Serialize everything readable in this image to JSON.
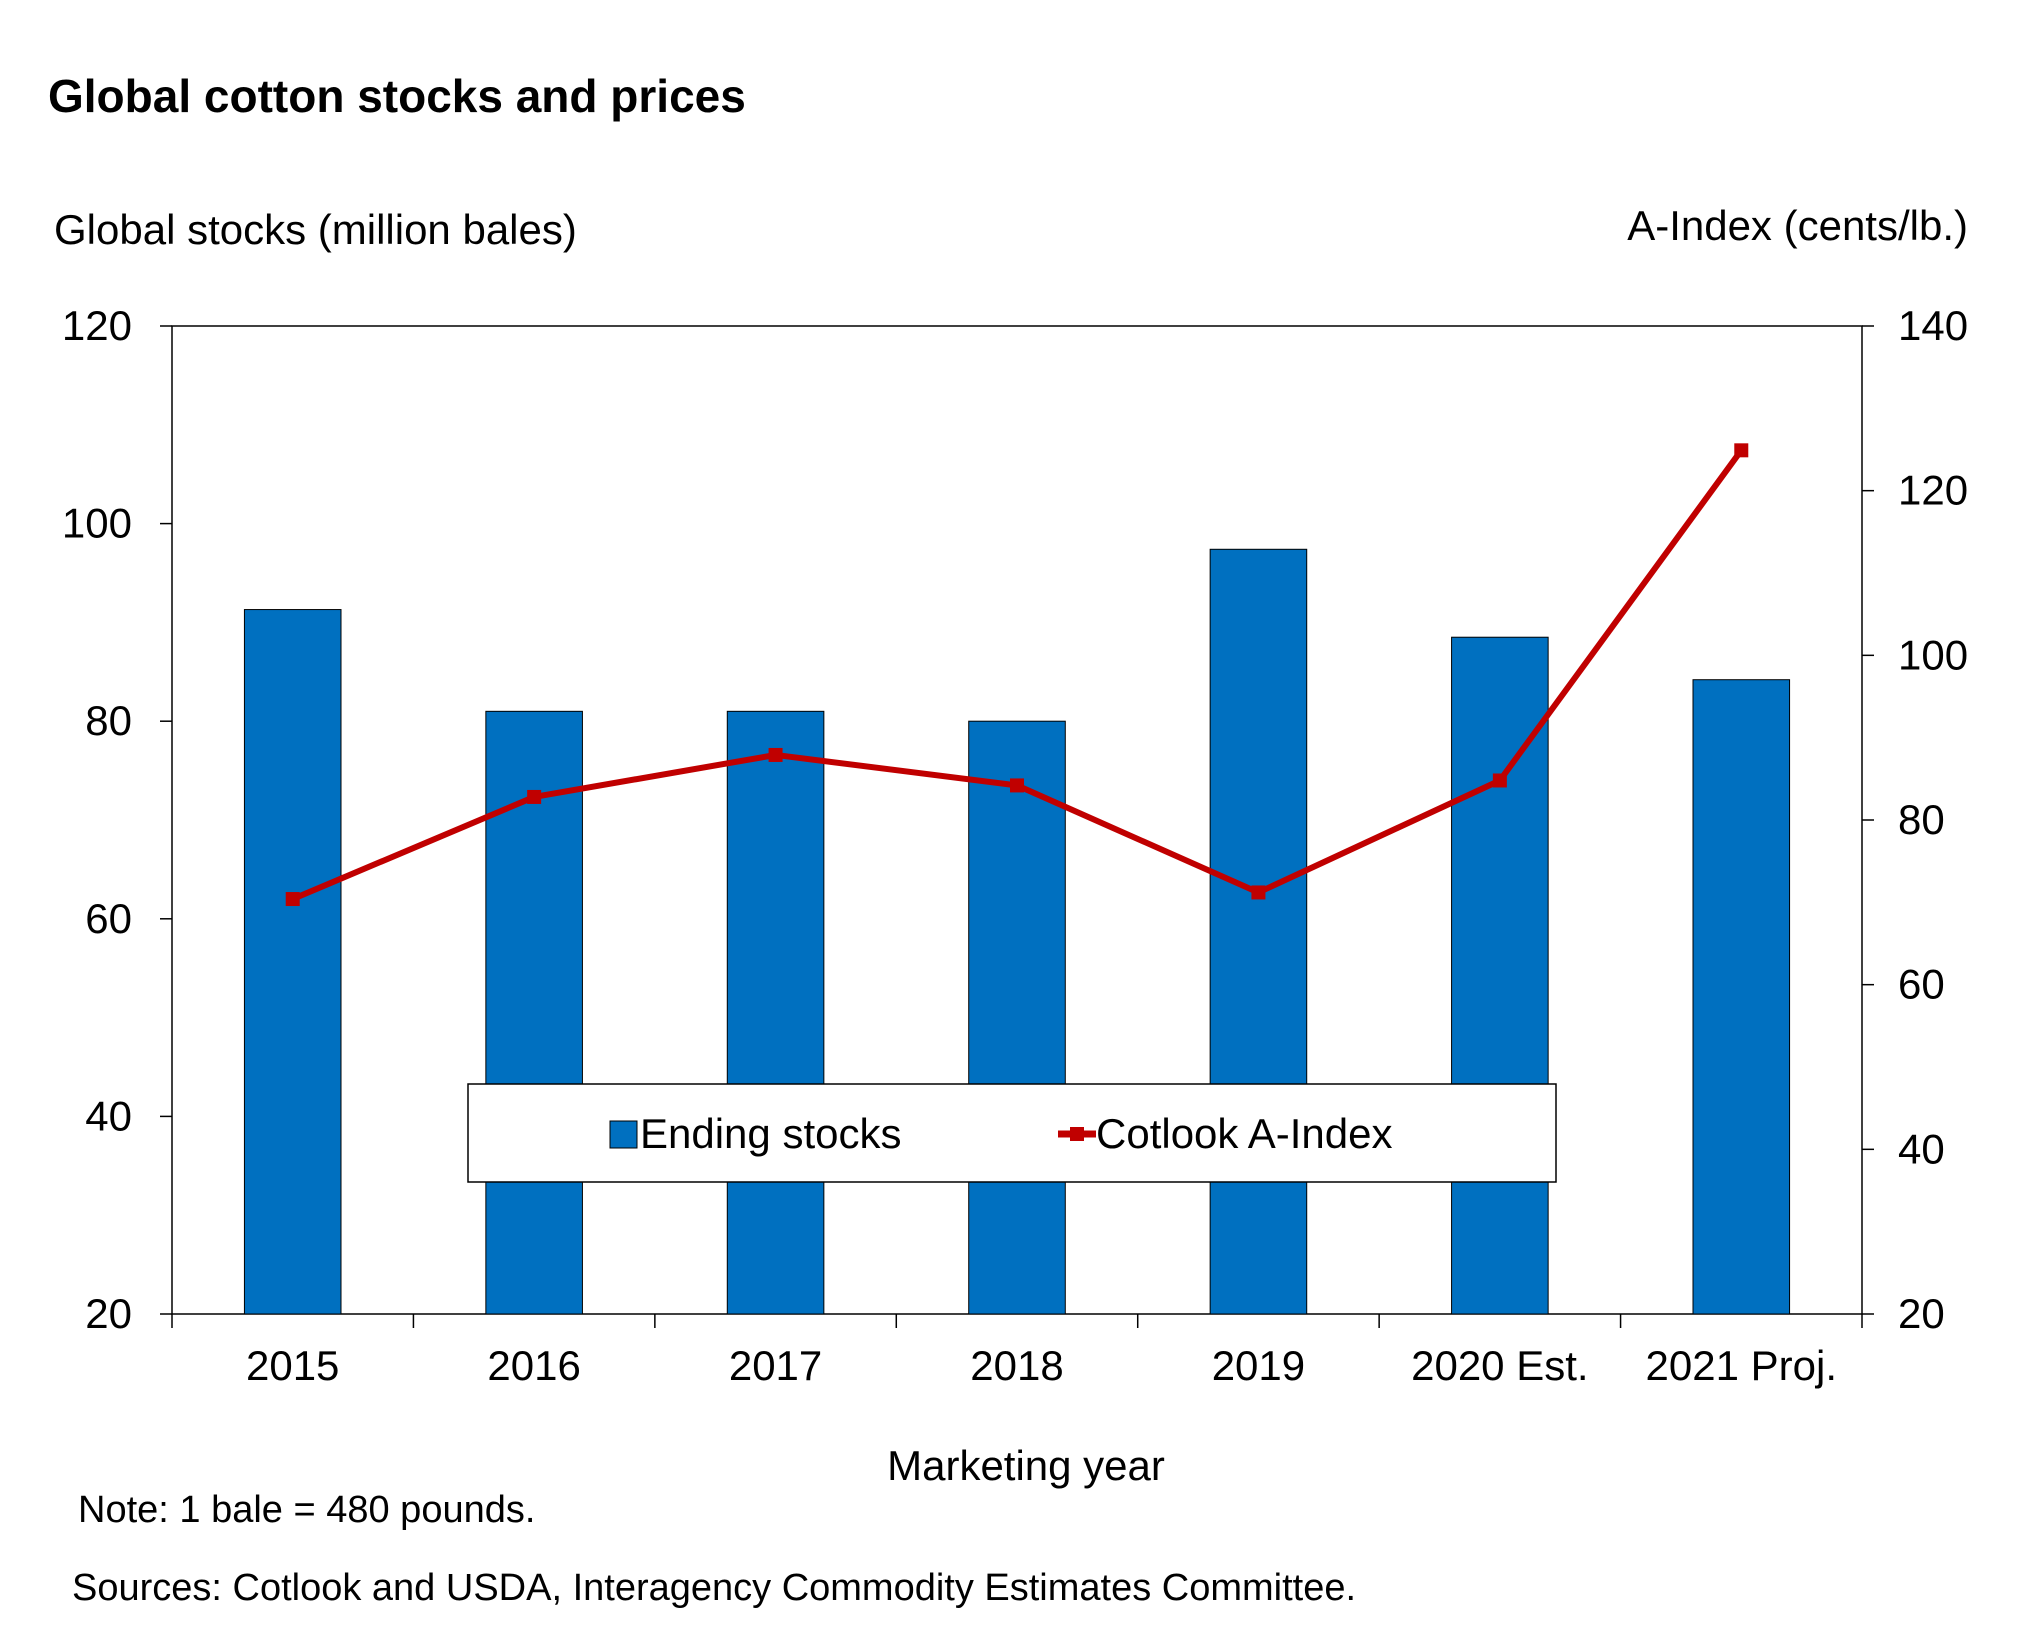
{
  "chart_data": {
    "type": "bar",
    "title": "Global cotton stocks and prices",
    "categories": [
      "2015",
      "2016",
      "2017",
      "2018",
      "2019",
      "2020 Est.",
      "2021 Proj."
    ],
    "series": [
      {
        "name": "Ending stocks",
        "type": "bar",
        "axis": "left",
        "color": "#0070C0",
        "values": [
          91.3,
          81.0,
          81.0,
          80.0,
          97.4,
          88.5,
          84.2
        ]
      },
      {
        "name": "Cotlook A-Index",
        "type": "line",
        "axis": "right",
        "color": "#C00000",
        "values": [
          70.4,
          82.8,
          87.9,
          84.2,
          71.2,
          84.8,
          124.9
        ]
      }
    ],
    "y_left": {
      "label": "Global stocks (million bales)",
      "ylim": [
        20,
        120
      ],
      "ticks": [
        20,
        40,
        60,
        80,
        100,
        120
      ]
    },
    "y_right": {
      "label": "A-Index (cents/lb.)",
      "ylim": [
        20,
        140
      ],
      "ticks": [
        20,
        40,
        60,
        80,
        100,
        120,
        140
      ]
    },
    "xlabel": "Marketing year",
    "legend": {
      "placement": "bottom-center-inside"
    },
    "grid": false
  },
  "notes": {
    "note": "Note: 1 bale = 480 pounds.",
    "sources": "Sources: Cotlook and USDA, Interagency Commodity Estimates Committee."
  }
}
